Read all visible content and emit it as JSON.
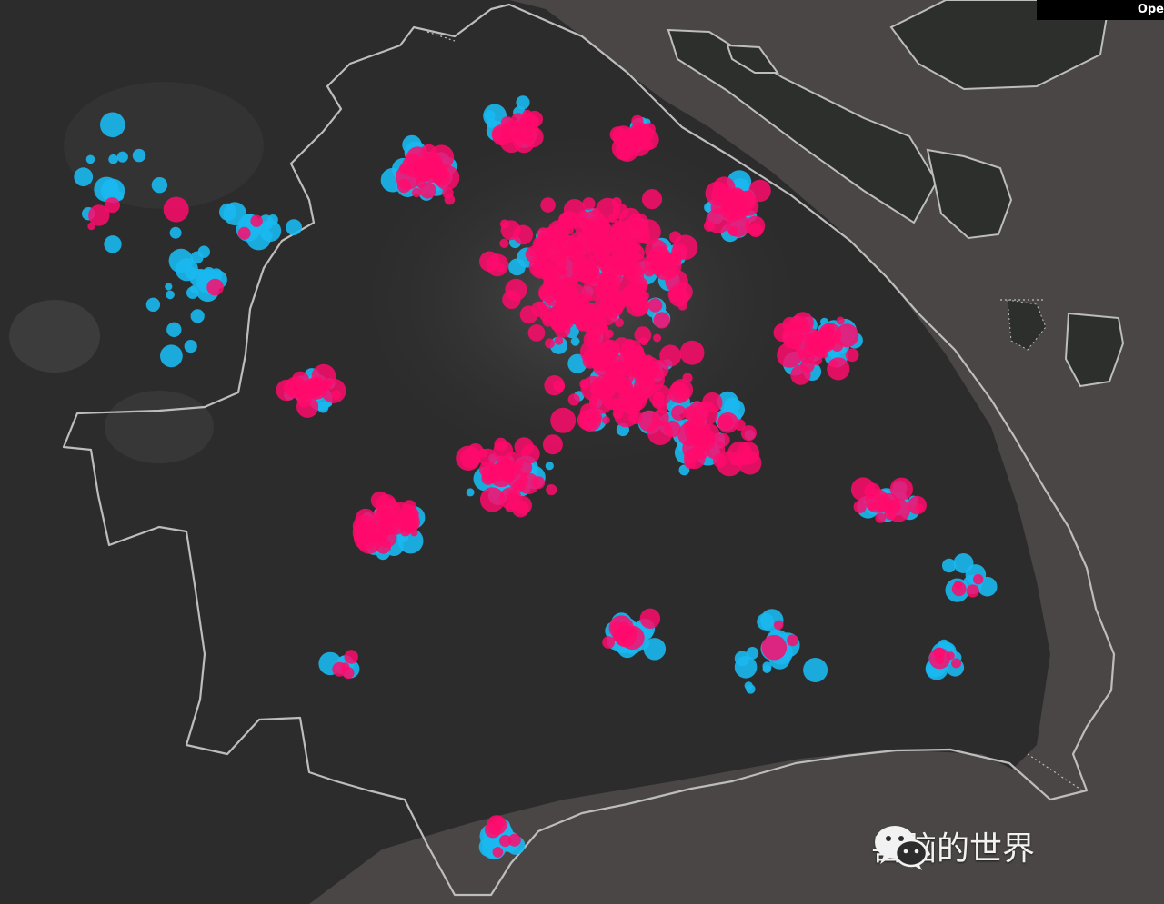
{
  "map": {
    "point_color_primary": "#ff0a6c",
    "point_color_secondary": "#1ab8f0",
    "boundary_color": "#bdbdbd"
  },
  "ui": {
    "corner_tab_label": "Ope"
  },
  "watermark": {
    "icon": "wechat-icon",
    "text": "兽脑的世界"
  }
}
